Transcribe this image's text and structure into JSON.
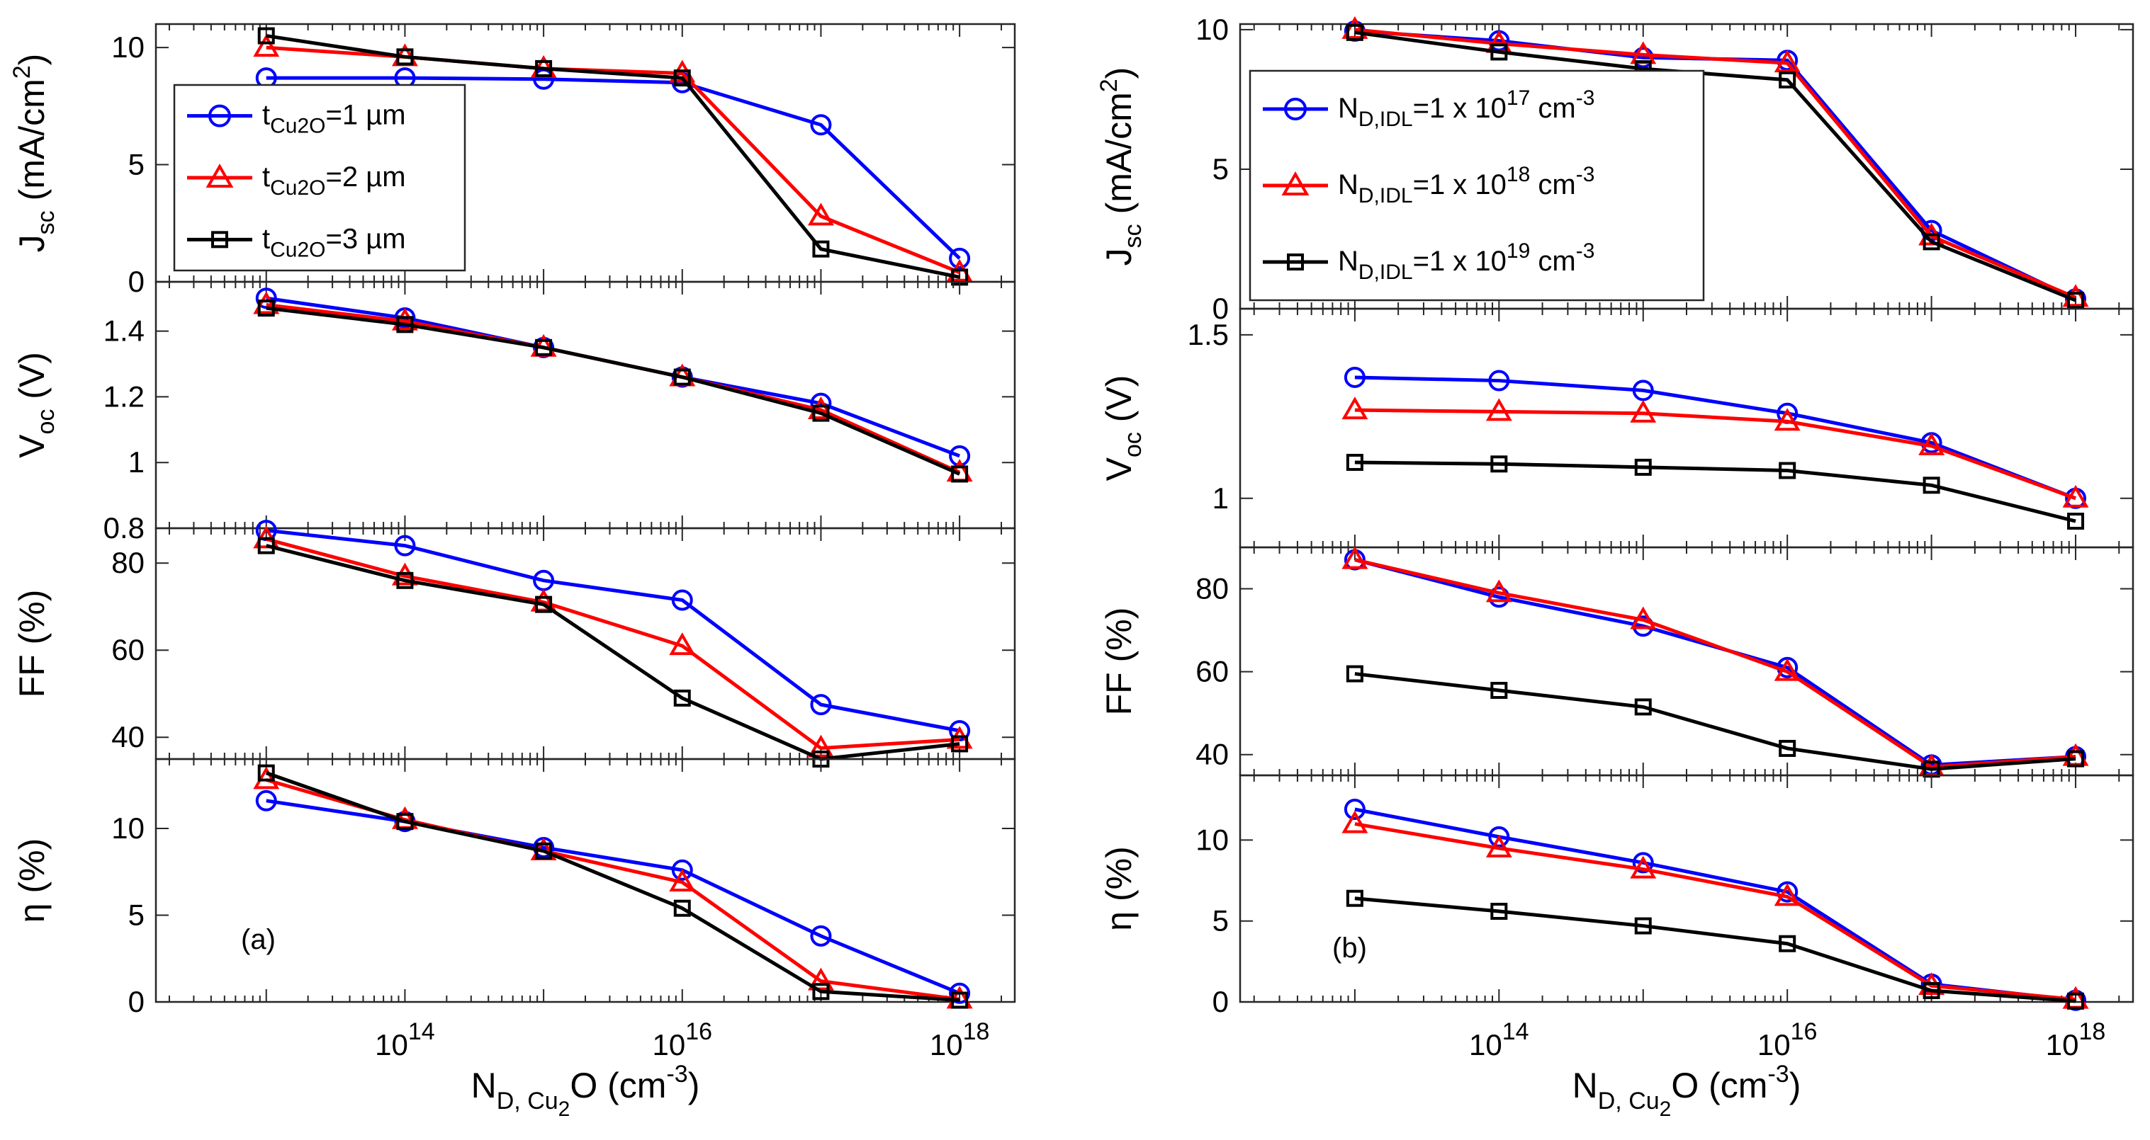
{
  "chart_data": [
    {
      "type": "line",
      "panel_label": "(a)",
      "x": [
        10000000000000.0,
        100000000000000.0,
        1000000000000000.0,
        1e+16,
        1e+17,
        1e+18
      ],
      "x_scale": "log",
      "xlim": [
        1600000000000.0,
        2.5e+18
      ],
      "x_tick_labels": [
        {
          "base": "10",
          "exp": "14"
        },
        {
          "base": "10",
          "exp": "16"
        },
        {
          "base": "10",
          "exp": "18"
        }
      ],
      "xlabel": {
        "main": "N",
        "sub": "D, Cu",
        "sub2": "2",
        "tail": "O",
        "unit": " (cm",
        "unit_exp": "-3",
        "unit_close": ")"
      },
      "series": [
        {
          "name": "tCu2O=1 µm",
          "legend": {
            "main": "t",
            "sub": "Cu2O",
            "tail": "=1 µm"
          },
          "color": "#0000ff",
          "marker": "circle"
        },
        {
          "name": "tCu2O=2 µm",
          "legend": {
            "main": "t",
            "sub": "Cu2O",
            "tail": "=2 µm"
          },
          "color": "#ff0000",
          "marker": "triangle"
        },
        {
          "name": "tCu2O=3 µm",
          "legend": {
            "main": "t",
            "sub": "Cu2O",
            "tail": "=3 µm"
          },
          "color": "#000000",
          "marker": "square"
        }
      ],
      "subplots": [
        {
          "key": "jsc",
          "ylabel": {
            "main": "J",
            "sub": "sc",
            "unit": " (mA/cm",
            "unit_exp": "2",
            "unit_close": ")"
          },
          "ylim": [
            0,
            11
          ],
          "yticks": [
            0,
            5,
            10
          ],
          "ytick_labels": [
            "0",
            "5",
            "10"
          ],
          "values": [
            [
              8.7,
              8.7,
              8.65,
              8.5,
              6.7,
              1.0
            ],
            [
              10.0,
              9.6,
              9.1,
              8.9,
              2.8,
              0.4
            ],
            [
              10.5,
              9.6,
              9.1,
              8.7,
              1.4,
              0.2
            ]
          ]
        },
        {
          "key": "voc",
          "ylabel": {
            "main": "V",
            "sub": "oc",
            "unit": " (V)"
          },
          "ylim": [
            0.8,
            1.55
          ],
          "yticks": [
            0.8,
            1.0,
            1.2,
            1.4
          ],
          "ytick_labels": [
            "0.8",
            "1",
            "1.2",
            "1.4"
          ],
          "values": [
            [
              1.5,
              1.44,
              1.35,
              1.26,
              1.18,
              1.02
            ],
            [
              1.48,
              1.43,
              1.35,
              1.26,
              1.16,
              0.97
            ],
            [
              1.47,
              1.42,
              1.35,
              1.26,
              1.15,
              0.965
            ]
          ]
        },
        {
          "key": "ff",
          "ylabel": {
            "main": "FF (%)"
          },
          "ylim": [
            35,
            88
          ],
          "yticks": [
            40,
            60,
            80
          ],
          "ytick_labels": [
            "40",
            "60",
            "80"
          ],
          "values": [
            [
              87.5,
              84,
              76,
              71.5,
              47.5,
              41.5
            ],
            [
              85.5,
              77,
              71,
              61,
              37.5,
              39.5
            ],
            [
              84,
              76,
              70.5,
              49,
              35,
              38.5
            ]
          ]
        },
        {
          "key": "eta",
          "ylabel": {
            "main": "η (%)"
          },
          "ylim": [
            0,
            14
          ],
          "yticks": [
            0,
            5,
            10
          ],
          "ytick_labels": [
            "0",
            "5",
            "10"
          ],
          "values": [
            [
              11.6,
              10.4,
              8.9,
              7.6,
              3.8,
              0.5
            ],
            [
              12.8,
              10.5,
              8.7,
              6.9,
              1.2,
              0.15
            ],
            [
              13.2,
              10.4,
              8.7,
              5.4,
              0.6,
              0.1
            ]
          ]
        }
      ]
    },
    {
      "type": "line",
      "panel_label": "(b)",
      "x": [
        10000000000000.0,
        100000000000000.0,
        1000000000000000.0,
        1e+16,
        1e+17,
        1e+18
      ],
      "x_scale": "log",
      "xlim": [
        1600000000000.0,
        2.5e+18
      ],
      "x_tick_labels": [
        {
          "base": "10",
          "exp": "14"
        },
        {
          "base": "10",
          "exp": "16"
        },
        {
          "base": "10",
          "exp": "18"
        }
      ],
      "xlabel": {
        "main": "N",
        "sub": "D, Cu",
        "sub2": "2",
        "tail": "O",
        "unit": " (cm",
        "unit_exp": "-3",
        "unit_close": ")"
      },
      "series": [
        {
          "name": "ND,IDL=1 x 10^17 cm^-3",
          "legend": {
            "main": "N",
            "sub": "D,IDL",
            "tail": "=1 x 10",
            "exp": "17",
            "unit": " cm",
            "unit_exp": "-3"
          },
          "color": "#0000ff",
          "marker": "circle"
        },
        {
          "name": "ND,IDL=1 x 10^18 cm^-3",
          "legend": {
            "main": "N",
            "sub": "D,IDL",
            "tail": "=1 x 10",
            "exp": "18",
            "unit": " cm",
            "unit_exp": "-3"
          },
          "color": "#ff0000",
          "marker": "triangle"
        },
        {
          "name": "ND,IDL=1 x 10^19 cm^-3",
          "legend": {
            "main": "N",
            "sub": "D,IDL",
            "tail": "=1 x 10",
            "exp": "19",
            "unit": " cm",
            "unit_exp": "-3"
          },
          "color": "#000000",
          "marker": "square"
        }
      ],
      "subplots": [
        {
          "key": "jsc",
          "ylabel": {
            "main": "J",
            "sub": "sc",
            "unit": " (mA/cm",
            "unit_exp": "2",
            "unit_close": ")"
          },
          "ylim": [
            0,
            10.2
          ],
          "yticks": [
            0,
            5,
            10
          ],
          "ytick_labels": [
            "0",
            "5",
            "10"
          ],
          "values": [
            [
              9.95,
              9.6,
              9.0,
              8.9,
              2.8,
              0.35
            ],
            [
              10.0,
              9.5,
              9.1,
              8.8,
              2.6,
              0.4
            ],
            [
              9.9,
              9.2,
              8.6,
              8.2,
              2.4,
              0.3
            ]
          ]
        },
        {
          "key": "voc",
          "ylabel": {
            "main": "V",
            "sub": "oc",
            "unit": " (V)"
          },
          "ylim": [
            0.85,
            1.58
          ],
          "yticks": [
            1.0,
            1.5
          ],
          "ytick_labels": [
            "1",
            "1.5"
          ],
          "values": [
            [
              1.37,
              1.36,
              1.33,
              1.26,
              1.17,
              1.0
            ],
            [
              1.27,
              1.265,
              1.26,
              1.235,
              1.16,
              1.0
            ],
            [
              1.11,
              1.105,
              1.095,
              1.085,
              1.04,
              0.93
            ]
          ]
        },
        {
          "key": "ff",
          "ylabel": {
            "main": "FF (%)"
          },
          "ylim": [
            35,
            90
          ],
          "yticks": [
            40,
            60,
            80
          ],
          "ytick_labels": [
            "40",
            "60",
            "80"
          ],
          "values": [
            [
              87,
              78,
              71,
              61,
              37.5,
              39.5
            ],
            [
              87,
              79,
              72.5,
              60,
              37,
              39.5
            ],
            [
              59.5,
              55.5,
              51.5,
              41.5,
              36.5,
              39
            ]
          ]
        },
        {
          "key": "eta",
          "ylabel": {
            "main": "η (%)"
          },
          "ylim": [
            0,
            14
          ],
          "yticks": [
            0,
            5,
            10
          ],
          "ytick_labels": [
            "0",
            "5",
            "10"
          ],
          "values": [
            [
              11.9,
              10.2,
              8.6,
              6.8,
              1.1,
              0.1
            ],
            [
              11.0,
              9.5,
              8.2,
              6.5,
              1.0,
              0.15
            ],
            [
              6.4,
              5.6,
              4.7,
              3.6,
              0.7,
              0.05
            ]
          ]
        }
      ]
    }
  ]
}
